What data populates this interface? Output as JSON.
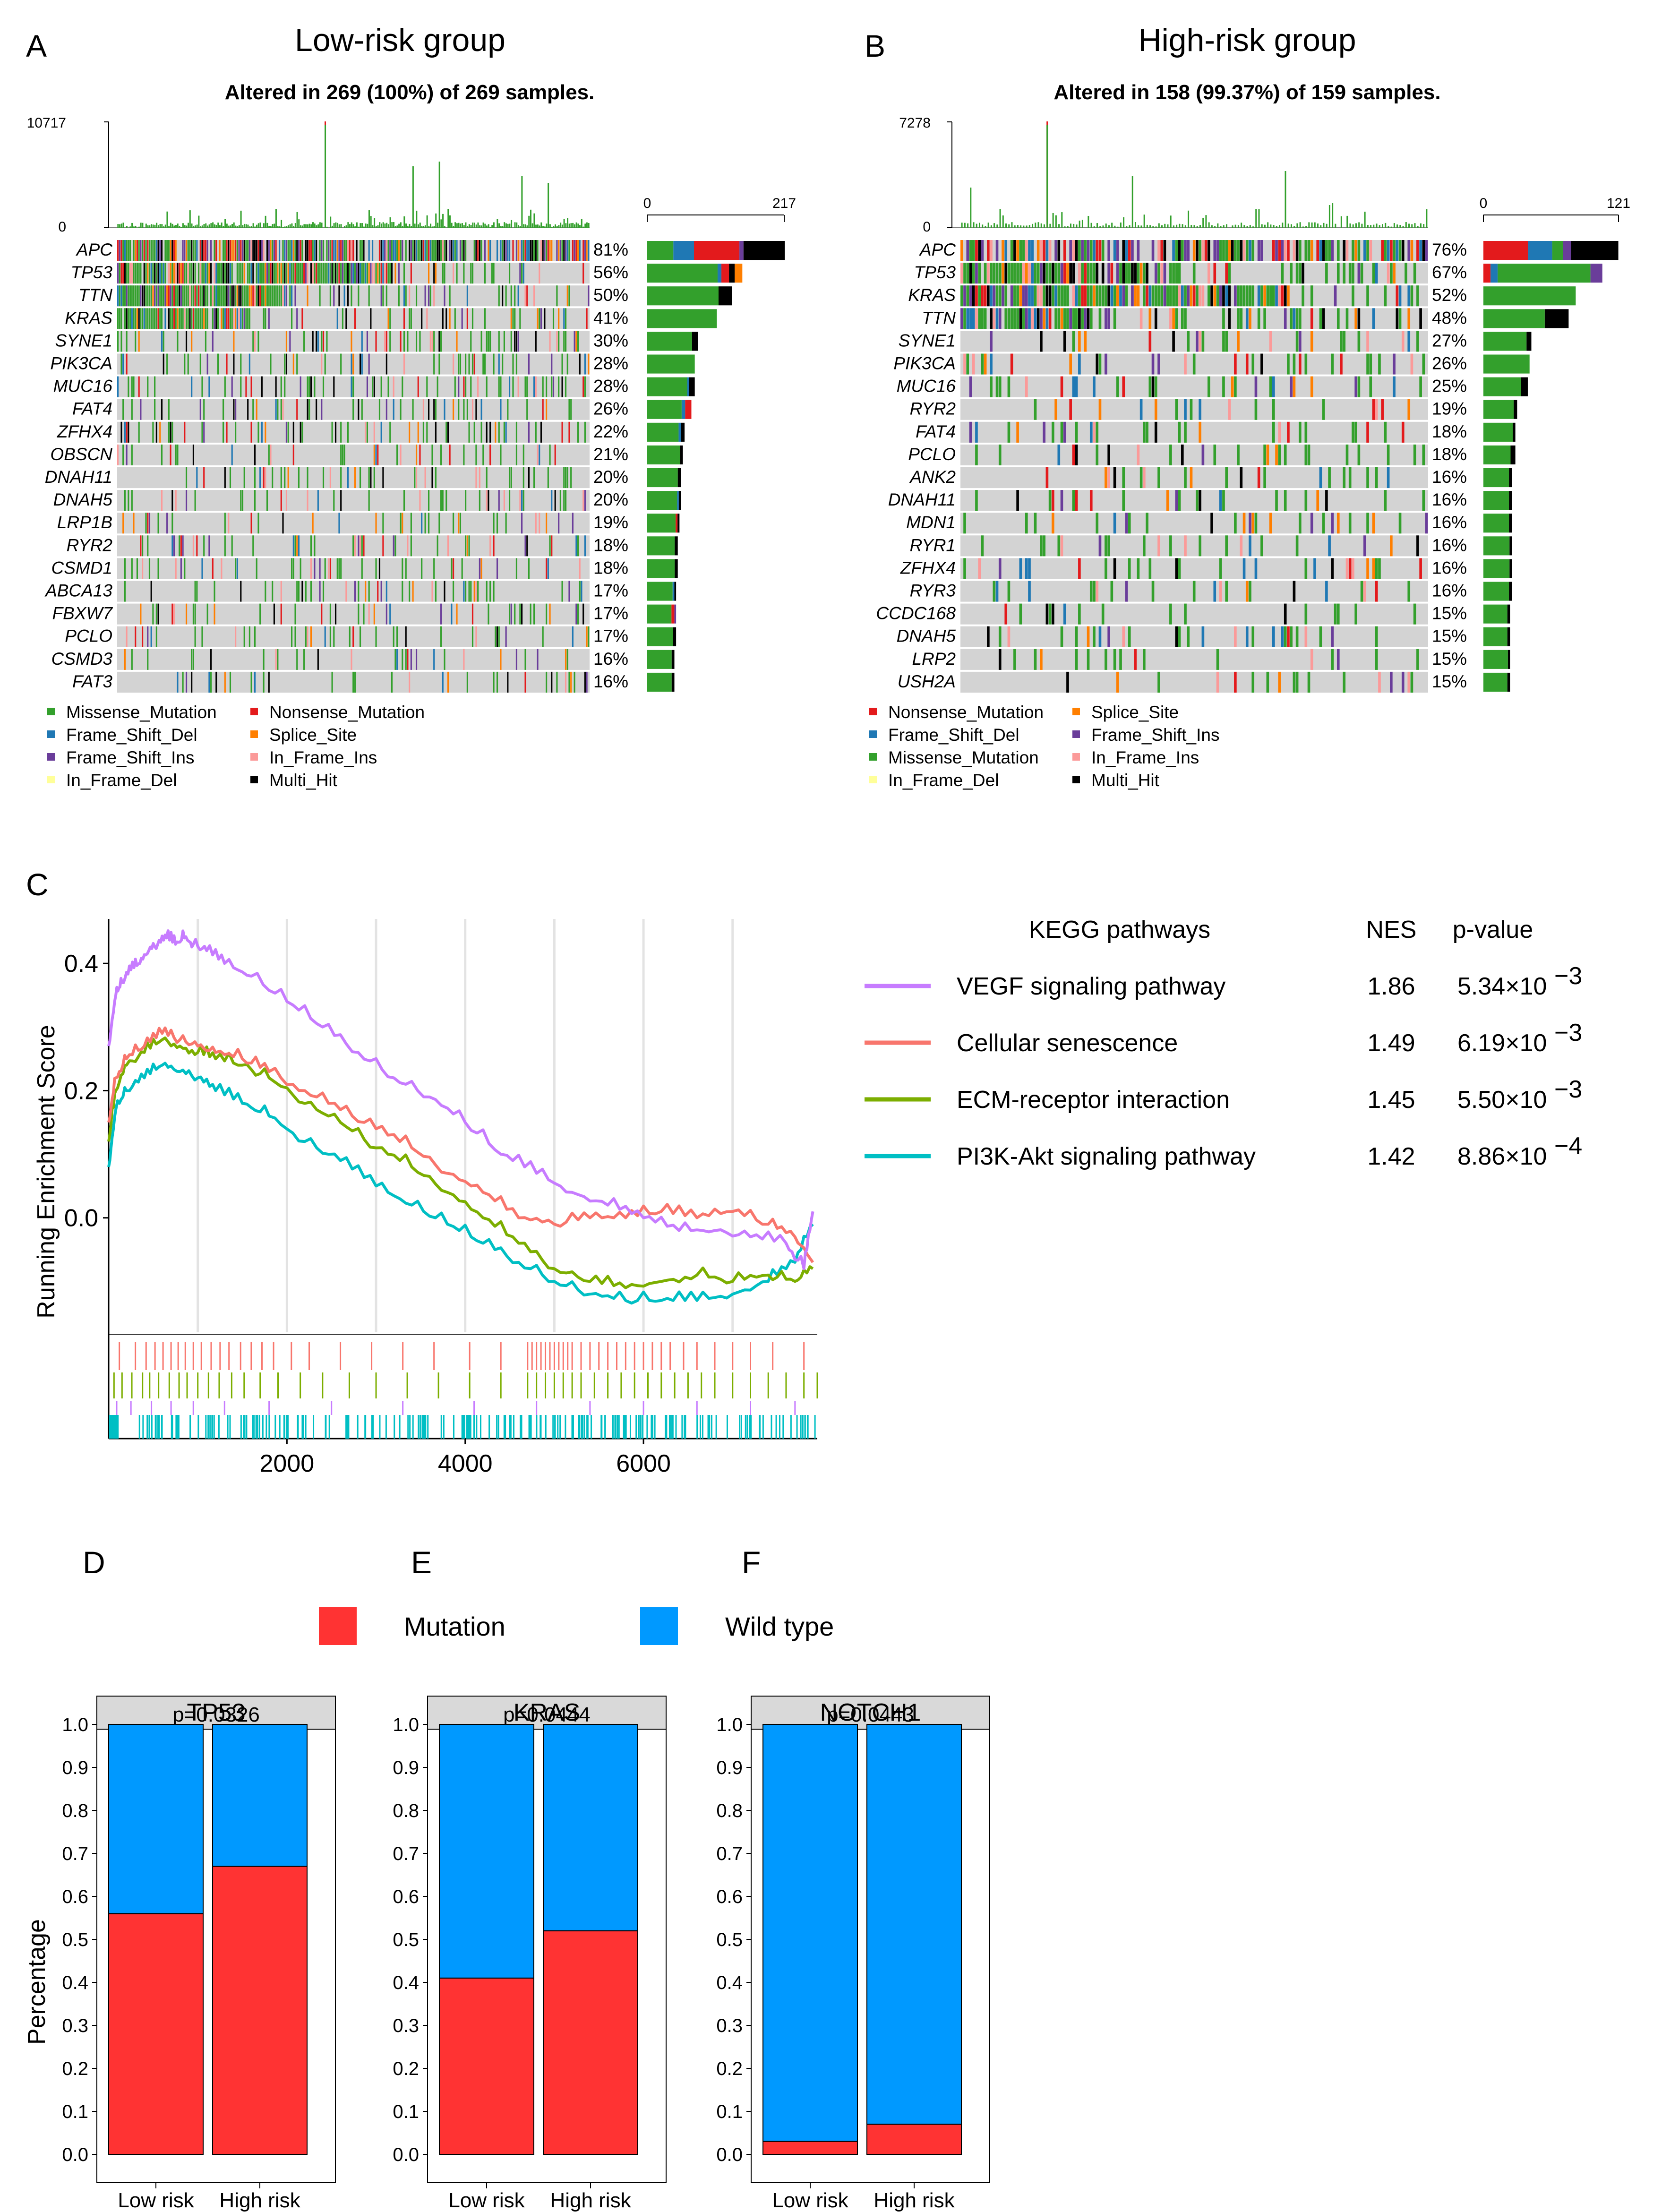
{
  "colors": {
    "missense": "#33a02c",
    "nonsense": "#e31a1c",
    "frameshift_del": "#1f78b4",
    "frameshift_ins": "#6a3d9a",
    "splice": "#ff7f00",
    "inframe_ins": "#fb9a99",
    "inframe_del": "#ffff99",
    "multi": "#000000",
    "grey": "#d3d3d3",
    "mutation": "#ff3333",
    "wildtype": "#0099ff",
    "vegf": "#c77cff",
    "senescence": "#f8766d",
    "ecm": "#7cae00",
    "pi3k": "#00bfc4"
  },
  "chart_data": [
    {
      "panel": "A",
      "type": "heatmap",
      "title": "Low-risk group",
      "subtitle": "Altered in 269 (100%) of 269 samples.",
      "top_axis": {
        "max_label": "10717",
        "min_label": "0"
      },
      "side_axis": {
        "min_label": "0",
        "max_label": "217",
        "max_value": 217
      },
      "genes": [
        "APC",
        "TP53",
        "TTN",
        "KRAS",
        "SYNE1",
        "PIK3CA",
        "MUC16",
        "FAT4",
        "ZFHX4",
        "OBSCN",
        "DNAH11",
        "DNAH5",
        "LRP1B",
        "RYR2",
        "CSMD1",
        "ABCA13",
        "FBXW7",
        "PCLO",
        "CSMD3",
        "FAT3"
      ],
      "percentages": [
        "81%",
        "56%",
        "50%",
        "41%",
        "30%",
        "28%",
        "28%",
        "26%",
        "22%",
        "21%",
        "20%",
        "20%",
        "19%",
        "18%",
        "18%",
        "17%",
        "17%",
        "17%",
        "16%",
        "16%"
      ],
      "pct_values": [
        81,
        56,
        50,
        41,
        30,
        28,
        28,
        26,
        22,
        21,
        20,
        20,
        19,
        18,
        18,
        17,
        17,
        17,
        16,
        16
      ],
      "legend": [
        {
          "label": "Missense_Mutation",
          "color_key": "missense"
        },
        {
          "label": "Nonsense_Mutation",
          "color_key": "nonsense"
        },
        {
          "label": "Frame_Shift_Del",
          "color_key": "frameshift_del"
        },
        {
          "label": "Splice_Site",
          "color_key": "splice"
        },
        {
          "label": "Frame_Shift_Ins",
          "color_key": "frameshift_ins"
        },
        {
          "label": "In_Frame_Ins",
          "color_key": "inframe_ins"
        },
        {
          "label": "In_Frame_Del",
          "color_key": "inframe_del"
        },
        {
          "label": "Multi_Hit",
          "color_key": "multi"
        }
      ]
    },
    {
      "panel": "B",
      "type": "heatmap",
      "title": "High-risk group",
      "subtitle": "Altered in 158 (99.37%) of 159 samples.",
      "top_axis": {
        "max_label": "7278",
        "min_label": "0"
      },
      "side_axis": {
        "min_label": "0",
        "max_label": "121",
        "max_value": 121
      },
      "genes": [
        "APC",
        "TP53",
        "KRAS",
        "TTN",
        "SYNE1",
        "PIK3CA",
        "MUC16",
        "RYR2",
        "FAT4",
        "PCLO",
        "ANK2",
        "DNAH11",
        "MDN1",
        "RYR1",
        "ZFHX4",
        "RYR3",
        "CCDC168",
        "DNAH5",
        "LRP2",
        "USH2A"
      ],
      "percentages": [
        "76%",
        "67%",
        "52%",
        "48%",
        "27%",
        "26%",
        "25%",
        "19%",
        "18%",
        "18%",
        "16%",
        "16%",
        "16%",
        "16%",
        "16%",
        "16%",
        "15%",
        "15%",
        "15%",
        "15%"
      ],
      "pct_values": [
        76,
        67,
        52,
        48,
        27,
        26,
        25,
        19,
        18,
        18,
        16,
        16,
        16,
        16,
        16,
        16,
        15,
        15,
        15,
        15
      ],
      "legend": [
        {
          "label": "Nonsense_Mutation",
          "color_key": "nonsense"
        },
        {
          "label": "Splice_Site",
          "color_key": "splice"
        },
        {
          "label": "Frame_Shift_Del",
          "color_key": "frameshift_del"
        },
        {
          "label": "Frame_Shift_Ins",
          "color_key": "frameshift_ins"
        },
        {
          "label": "Missense_Mutation",
          "color_key": "missense"
        },
        {
          "label": "In_Frame_Ins",
          "color_key": "inframe_ins"
        },
        {
          "label": "In_Frame_Del",
          "color_key": "inframe_del"
        },
        {
          "label": "Multi_Hit",
          "color_key": "multi"
        }
      ]
    },
    {
      "panel": "C",
      "type": "line",
      "ylabel": "Running Enrichment Score",
      "xlim": [
        0,
        7950
      ],
      "ylim": [
        -0.18,
        0.47
      ],
      "xticks": [
        2000,
        4000,
        6000
      ],
      "xtick_labels": [
        "2000",
        "4000",
        "6000"
      ],
      "yticks": [
        0.0,
        0.2,
        0.4
      ],
      "ytick_labels": [
        "0.0",
        "0.2",
        "0.4"
      ],
      "table_headers": {
        "pathways": "KEGG pathways",
        "nes": "NES",
        "pvalue": "p-value"
      },
      "series": [
        {
          "key": "vegf",
          "name": "VEGF signaling pathway",
          "nes": "1.86",
          "pvalue": "5.34×10",
          "exp": "−3",
          "x": [
            0,
            80,
            150,
            250,
            350,
            450,
            550,
            650,
            750,
            850,
            950,
            1100,
            1300,
            1600,
            2000,
            2400,
            2800,
            3200,
            3600,
            4000,
            4400,
            4800,
            5200,
            5600,
            6000,
            6400,
            6800,
            7200,
            7600,
            7800,
            7900
          ],
          "y": [
            0.27,
            0.35,
            0.37,
            0.39,
            0.4,
            0.42,
            0.43,
            0.44,
            0.43,
            0.44,
            0.43,
            0.42,
            0.4,
            0.38,
            0.34,
            0.3,
            0.26,
            0.22,
            0.19,
            0.15,
            0.1,
            0.07,
            0.04,
            0.02,
            0.0,
            -0.02,
            -0.02,
            -0.03,
            -0.04,
            -0.08,
            0.01
          ]
        },
        {
          "key": "senescence",
          "name": "Cellular senescence",
          "nes": "1.49",
          "pvalue": "6.19×10",
          "exp": "−3",
          "x": [
            0,
            80,
            200,
            400,
            600,
            800,
            1000,
            1200,
            1500,
            1800,
            2200,
            2600,
            3000,
            3400,
            3800,
            4200,
            4600,
            5000,
            5400,
            5800,
            6200,
            6600,
            7000,
            7400,
            7700,
            7900
          ],
          "y": [
            0.15,
            0.22,
            0.25,
            0.27,
            0.29,
            0.28,
            0.27,
            0.26,
            0.25,
            0.23,
            0.2,
            0.17,
            0.14,
            0.11,
            0.07,
            0.04,
            0.0,
            -0.01,
            0.0,
            0.0,
            0.01,
            0.0,
            0.01,
            -0.01,
            -0.03,
            -0.07
          ]
        },
        {
          "key": "ecm",
          "name": "ECM-receptor interaction",
          "nes": "1.45",
          "pvalue": "5.50×10",
          "exp": "−3",
          "x": [
            0,
            80,
            200,
            400,
            600,
            800,
            1000,
            1200,
            1500,
            1800,
            2200,
            2600,
            3000,
            3400,
            3800,
            4200,
            4600,
            5000,
            5400,
            5800,
            6200,
            6600,
            7000,
            7400,
            7700,
            7900
          ],
          "y": [
            0.12,
            0.2,
            0.24,
            0.26,
            0.28,
            0.27,
            0.26,
            0.25,
            0.24,
            0.22,
            0.18,
            0.15,
            0.11,
            0.08,
            0.04,
            0.0,
            -0.04,
            -0.08,
            -0.1,
            -0.11,
            -0.1,
            -0.09,
            -0.1,
            -0.09,
            -0.1,
            -0.08
          ]
        },
        {
          "key": "pi3k",
          "name": "PI3K-Akt signaling pathway",
          "nes": "1.42",
          "pvalue": "8.86×10",
          "exp": "−4",
          "x": [
            0,
            80,
            200,
            400,
            600,
            800,
            1000,
            1200,
            1500,
            1800,
            2200,
            2600,
            3000,
            3400,
            3800,
            4200,
            4600,
            5000,
            5400,
            5800,
            6200,
            6600,
            7000,
            7400,
            7700,
            7900
          ],
          "y": [
            0.08,
            0.17,
            0.2,
            0.22,
            0.24,
            0.23,
            0.22,
            0.2,
            0.18,
            0.16,
            0.12,
            0.09,
            0.05,
            0.02,
            -0.01,
            -0.04,
            -0.07,
            -0.1,
            -0.12,
            -0.13,
            -0.13,
            -0.13,
            -0.12,
            -0.1,
            -0.07,
            -0.01
          ]
        }
      ],
      "hits": {
        "senescence": [
          120,
          300,
          420,
          520,
          610,
          700,
          780,
          860,
          950,
          1040,
          1150,
          1250,
          1350,
          1480,
          1600,
          1720,
          1850,
          2050,
          2250,
          2600,
          2950,
          3300,
          3650,
          4050,
          4400,
          4700,
          4750,
          4800,
          4850,
          4900,
          4950,
          5000,
          5050,
          5100,
          5150,
          5200,
          5300,
          5400,
          5500,
          5600,
          5700,
          5800,
          5900,
          6000,
          6100,
          6200,
          6300,
          6450,
          6600,
          6800,
          7000,
          7200,
          7450,
          7800
        ],
        "ecm": [
          60,
          150,
          260,
          380,
          460,
          560,
          680,
          790,
          880,
          1000,
          1120,
          1240,
          1380,
          1520,
          1700,
          1900,
          2150,
          2400,
          2700,
          3000,
          3350,
          3700,
          4050,
          4400,
          4700,
          4800,
          4900,
          5000,
          5100,
          5200,
          5300,
          5450,
          5600,
          5750,
          5900,
          6050,
          6200,
          6350,
          6500,
          6650,
          6800,
          7000,
          7200,
          7400,
          7600,
          7800,
          7950
        ],
        "vegf": [
          90,
          250,
          480,
          700,
          950,
          1300,
          1800,
          2500,
          3300,
          4100,
          4800,
          5400,
          6000,
          6600,
          7200,
          7700
        ],
        "pi3k": []
      },
      "pi3k_hit_count": 210
    },
    {
      "panel": "D",
      "type": "bar",
      "title": "TP53",
      "pvalue_label": "p=0.0326",
      "categories": [
        "Low risk",
        "High risk"
      ],
      "series": [
        {
          "name": "Mutation",
          "values": [
            0.56,
            0.67
          ]
        },
        {
          "name": "Wild type",
          "values": [
            0.44,
            0.33
          ]
        }
      ],
      "ylabel": "Percentage",
      "ylim": [
        0,
        1
      ],
      "yticks": [
        "0.0",
        "0.1",
        "0.2",
        "0.3",
        "0.4",
        "0.5",
        "0.6",
        "0.7",
        "0.8",
        "0.9",
        "1.0"
      ]
    },
    {
      "panel": "E",
      "type": "bar",
      "title": "KRAS",
      "pvalue_label": "p=0.0444",
      "categories": [
        "Low risk",
        "High risk"
      ],
      "series": [
        {
          "name": "Mutation",
          "values": [
            0.41,
            0.52
          ]
        },
        {
          "name": "Wild type",
          "values": [
            0.59,
            0.48
          ]
        }
      ],
      "ylim": [
        0,
        1
      ],
      "yticks": [
        "0.0",
        "0.1",
        "0.2",
        "0.3",
        "0.4",
        "0.5",
        "0.6",
        "0.7",
        "0.8",
        "0.9",
        "1.0"
      ]
    },
    {
      "panel": "F",
      "type": "bar",
      "title": "NOTCH1",
      "pvalue_label": "p=0.0443",
      "categories": [
        "Low risk",
        "High risk"
      ],
      "series": [
        {
          "name": "Mutation",
          "values": [
            0.03,
            0.07
          ]
        },
        {
          "name": "Wild type",
          "values": [
            0.97,
            0.93
          ]
        }
      ],
      "ylim": [
        0,
        1
      ],
      "yticks": [
        "0.0",
        "0.1",
        "0.2",
        "0.3",
        "0.4",
        "0.5",
        "0.6",
        "0.7",
        "0.8",
        "0.9",
        "1.0"
      ]
    }
  ],
  "bar_legend": {
    "mutation_label": "Mutation",
    "wildtype_label": "Wild type"
  }
}
